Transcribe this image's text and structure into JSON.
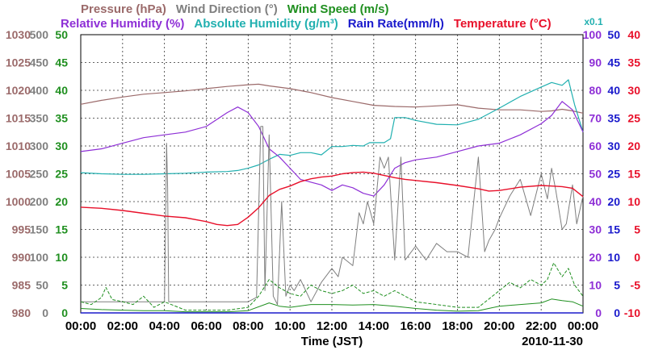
{
  "chart_data": {
    "type": "line",
    "title_lines": [
      [
        {
          "key": "pressure",
          "text": "Pressure (hPa)",
          "color": "#9b6a6a"
        },
        {
          "key": "wind_dir",
          "text": "Wind Direction (°)",
          "color": "#7f7f7f"
        },
        {
          "key": "wind_speed",
          "text": "Wind Speed (m/s)",
          "color": "#1f8f1f"
        }
      ],
      [
        {
          "key": "rh",
          "text": "Relative Humidity (%)",
          "color": "#8e2fd6"
        },
        {
          "key": "abs_hum",
          "text": "Absolute Humidity (g/m³)",
          "color": "#21b0b0"
        },
        {
          "key": "rain",
          "text": "Rain Rate(mm/h)",
          "color": "#1a1acc"
        },
        {
          "key": "temp",
          "text": "Temperature (°C)",
          "color": "#e8102a"
        }
      ]
    ],
    "scale_note": {
      "text": "x0.1",
      "color": "#21b0b0"
    },
    "xlabel": "Time (JST)",
    "date": "2010-11-30",
    "x_range": [
      0,
      24
    ],
    "x_ticks": [
      "00:00",
      "02:00",
      "04:00",
      "06:00",
      "08:00",
      "10:00",
      "12:00",
      "14:00",
      "16:00",
      "18:00",
      "20:00",
      "22:00",
      "00:00"
    ],
    "left_axes": [
      {
        "key": "pressure",
        "color": "#9b6a6a",
        "range": [
          980,
          1030
        ],
        "ticks": [
          "980",
          "985",
          "990",
          "995",
          "1000",
          "1005",
          "1010",
          "1015",
          "1020",
          "1025",
          "1030"
        ]
      },
      {
        "key": "wind_dir",
        "color": "#7f7f7f",
        "range": [
          0,
          500
        ],
        "ticks": [
          "0",
          "50",
          "100",
          "150",
          "200",
          "250",
          "300",
          "350",
          "400",
          "450",
          "500"
        ]
      },
      {
        "key": "wind_speed",
        "color": "#1f8f1f",
        "range": [
          0,
          50
        ],
        "ticks": [
          "0",
          "5",
          "10",
          "15",
          "20",
          "25",
          "30",
          "35",
          "40",
          "45",
          "50"
        ]
      }
    ],
    "right_axes": [
      {
        "key": "rh",
        "color": "#8e2fd6",
        "range": [
          0,
          100
        ],
        "ticks": [
          "0",
          "10",
          "20",
          "30",
          "40",
          "50",
          "60",
          "70",
          "80",
          "90",
          "100"
        ]
      },
      {
        "key": "rain",
        "color": "#1a1acc",
        "range": [
          0,
          50
        ],
        "ticks": [
          "0",
          "5",
          "10",
          "15",
          "20",
          "25",
          "30",
          "35",
          "40",
          "45",
          "50"
        ]
      },
      {
        "key": "temp",
        "color": "#e8102a",
        "range": [
          -10,
          40
        ],
        "ticks": [
          "-10",
          "-5",
          "0",
          "5",
          "10",
          "15",
          "20",
          "25",
          "30",
          "35",
          "40"
        ]
      }
    ],
    "series": [
      {
        "name": "Pressure",
        "unit": "hPa",
        "axis": "pressure",
        "color": "#9b6a6a",
        "style": "solid",
        "width": 1.2,
        "x": [
          0,
          1,
          2,
          3,
          4,
          5,
          6,
          7,
          8,
          8.5,
          9,
          10,
          11,
          12,
          13,
          14,
          15,
          16,
          17,
          18,
          19,
          20,
          21,
          22,
          22.5,
          23,
          23.5,
          24
        ],
        "y": [
          1017.5,
          1018.2,
          1018.8,
          1019.3,
          1019.6,
          1019.9,
          1020.3,
          1020.7,
          1021.0,
          1021.1,
          1020.8,
          1020.3,
          1019.6,
          1018.7,
          1018.0,
          1017.3,
          1017.1,
          1017.0,
          1017.2,
          1017.4,
          1016.8,
          1016.5,
          1016.5,
          1016.2,
          1016.3,
          1016.6,
          1016.3,
          1015.9
        ]
      },
      {
        "name": "Absolute Humidity",
        "unit": "g/m³ x0.1",
        "axis": "wind_speed",
        "color": "#21b0b0",
        "style": "solid",
        "width": 1.2,
        "x": [
          0,
          1,
          2,
          3,
          4,
          5,
          6,
          7,
          7.5,
          8,
          8.5,
          9,
          9.5,
          10,
          10.5,
          11,
          11.5,
          12,
          12.5,
          13,
          13.5,
          13.8,
          14,
          14.5,
          14.8,
          15,
          15.5,
          16,
          17,
          18,
          19,
          20,
          21,
          22,
          22.5,
          23,
          23.3,
          23.6,
          24
        ],
        "y": [
          25.2,
          25.0,
          24.9,
          24.9,
          25.0,
          25.1,
          25.3,
          25.4,
          25.6,
          26.0,
          26.6,
          27.6,
          28.5,
          28.3,
          28.8,
          28.8,
          28.4,
          29.9,
          29.9,
          30.1,
          30.0,
          30.6,
          30.6,
          30.6,
          31.3,
          35.1,
          35.1,
          34.6,
          33.9,
          33.8,
          34.8,
          36.8,
          38.9,
          40.6,
          41.4,
          40.9,
          41.9,
          37.4,
          32.5
        ]
      },
      {
        "name": "Relative Humidity",
        "unit": "%",
        "axis": "rh",
        "color": "#8e2fd6",
        "style": "solid",
        "width": 1.2,
        "x": [
          0,
          1,
          2,
          3,
          4,
          5,
          6,
          7,
          7.5,
          8,
          8.5,
          9,
          9.5,
          10,
          10.5,
          11,
          11.5,
          12,
          12.5,
          13,
          13.5,
          14,
          14.5,
          15,
          15.5,
          16,
          17,
          18,
          19,
          20,
          21,
          22,
          22.5,
          23,
          23.5,
          24
        ],
        "y": [
          58,
          59,
          61,
          63,
          64,
          65,
          67,
          72,
          74,
          72,
          67,
          59,
          56,
          52,
          48,
          47,
          46,
          44,
          46,
          45,
          43,
          42,
          46,
          52,
          54,
          55,
          56,
          58,
          60,
          61,
          64,
          68,
          71,
          76,
          73,
          65
        ]
      },
      {
        "name": "Wind Direction",
        "unit": "°",
        "axis": "wind_dir",
        "color": "#7f7f7f",
        "style": "solid",
        "width": 1,
        "x": [
          0,
          4,
          4.1,
          4.15,
          4.2,
          8,
          8.4,
          8.6,
          8.7,
          8.8,
          9,
          9.2,
          9.4,
          9.6,
          9.8,
          10,
          10.2,
          10.5,
          11,
          11.5,
          12,
          12.3,
          12.5,
          13,
          13.3,
          13.5,
          13.7,
          14,
          14.3,
          14.5,
          14.7,
          15,
          15.3,
          15.5,
          16,
          16.5,
          17,
          17.5,
          18,
          18.5,
          19,
          19.3,
          19.5,
          19.8,
          20,
          20.5,
          21,
          21.5,
          22,
          22.3,
          22.5,
          22.7,
          23,
          23.2,
          23.5,
          23.7,
          24
        ],
        "y": [
          20,
          20,
          305,
          225,
          20,
          20,
          28,
          335,
          335,
          40,
          320,
          30,
          15,
          200,
          30,
          50,
          40,
          60,
          20,
          55,
          80,
          65,
          100,
          85,
          180,
          160,
          200,
          160,
          280,
          260,
          280,
          95,
          280,
          95,
          120,
          95,
          125,
          110,
          110,
          100,
          280,
          110,
          130,
          150,
          170,
          210,
          240,
          175,
          250,
          205,
          260,
          220,
          150,
          160,
          230,
          160,
          210
        ]
      },
      {
        "name": "Wind Speed",
        "unit": "m/s",
        "axis": "wind_speed",
        "color": "#1f8f1f",
        "style": "dashed",
        "width": 1,
        "x": [
          0,
          0.5,
          1,
          1.2,
          1.5,
          2,
          2.5,
          3,
          3.5,
          4,
          5,
          6,
          7,
          8,
          8.5,
          9,
          9.5,
          10,
          10.5,
          11,
          11.5,
          12,
          12.5,
          13,
          13.5,
          14,
          14.5,
          15,
          15.5,
          16,
          17,
          18,
          19,
          19.5,
          20,
          20.5,
          21,
          21.5,
          22,
          22.3,
          22.6,
          23,
          23.3,
          23.6,
          24
        ],
        "y": [
          2,
          1.5,
          2.8,
          4.6,
          2.4,
          2,
          1.5,
          3,
          1,
          2,
          0.5,
          0.5,
          0.5,
          1,
          3,
          6,
          4.5,
          3.5,
          3,
          5,
          4,
          3.5,
          4,
          5,
          3.5,
          4,
          3,
          4,
          3,
          2,
          1.5,
          1,
          1,
          2.5,
          4,
          5.5,
          4.5,
          6,
          5,
          6,
          9,
          6.5,
          8,
          5,
          3
        ]
      },
      {
        "name": "Wind Speed (avg)",
        "unit": "m/s",
        "axis": "wind_speed",
        "color": "#1f8f1f",
        "style": "solid",
        "width": 1,
        "x": [
          0,
          1,
          2,
          3,
          4,
          5,
          6,
          7,
          8,
          9,
          9.5,
          10,
          11,
          12,
          13,
          14,
          15,
          16,
          17,
          18,
          19,
          20,
          21,
          22,
          22.5,
          23,
          23.5,
          24
        ],
        "y": [
          0.8,
          0.6,
          0.5,
          0.4,
          0.4,
          0.2,
          0.2,
          0.2,
          0.4,
          1.8,
          1.2,
          1.0,
          1.5,
          1.5,
          1.4,
          1.5,
          1.2,
          0.8,
          0.5,
          0.3,
          0.4,
          1.2,
          1.5,
          1.8,
          2.5,
          2.2,
          2.0,
          1.2
        ]
      },
      {
        "name": "Temperature",
        "unit": "°C",
        "axis": "temp",
        "color": "#e8102a",
        "style": "solid",
        "width": 1.4,
        "x": [
          0,
          1,
          2,
          3,
          4,
          5,
          6,
          6.5,
          7,
          7.5,
          8,
          8.5,
          9,
          9.5,
          10,
          10.5,
          11,
          11.5,
          12,
          12.5,
          13,
          13.5,
          14,
          14.5,
          15,
          15.5,
          16,
          17,
          18,
          19,
          19.5,
          20,
          21,
          22,
          22.5,
          23,
          23.5,
          24
        ],
        "y": [
          9.0,
          8.8,
          8.4,
          7.9,
          7.4,
          7.1,
          6.4,
          5.9,
          5.7,
          5.9,
          7.2,
          8.9,
          11.1,
          12.2,
          12.8,
          13.6,
          14.1,
          14.4,
          14.6,
          15.0,
          15.2,
          15.3,
          15.1,
          14.7,
          14.3,
          14.0,
          13.8,
          13.4,
          12.9,
          12.3,
          11.9,
          12.0,
          12.6,
          12.9,
          12.8,
          12.7,
          12.4,
          10.9
        ]
      },
      {
        "name": "Rain Rate",
        "unit": "mm/h",
        "axis": "rain",
        "color": "#1a1acc",
        "style": "solid",
        "width": 1.5,
        "x": [
          0,
          24
        ],
        "y": [
          0,
          0
        ]
      }
    ]
  }
}
